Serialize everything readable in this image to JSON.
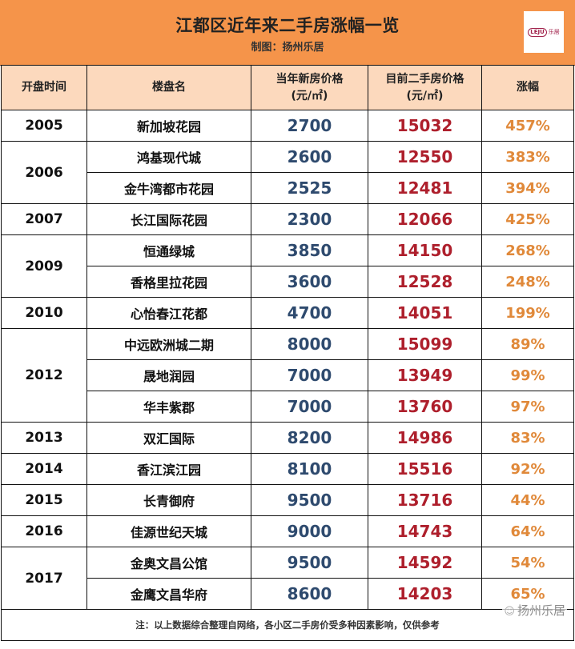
{
  "header": {
    "title": "江都区近年来二手房涨幅一览",
    "subtitle": "制图：扬州乐居",
    "logo": {
      "mark": "LEJU",
      "text": "乐居"
    }
  },
  "colors": {
    "title_band": "#F5944A",
    "header_row": "#FCD9BD",
    "new_price": "#2E4A6E",
    "used_price": "#AE1F2C",
    "rise": "#E0893A"
  },
  "table": {
    "columns": [
      "开盘时间",
      "楼盘名",
      "当年新房价格",
      "目前二手房价格",
      "涨幅"
    ],
    "column_units": [
      "",
      "",
      "(元/㎡)",
      "(元/㎡)",
      ""
    ],
    "groups": [
      {
        "year": "2005",
        "rows": [
          {
            "name": "新加坡花园",
            "new_price": "2700",
            "used_price": "15032",
            "rise": "457%"
          }
        ]
      },
      {
        "year": "2006",
        "rows": [
          {
            "name": "鸿基现代城",
            "new_price": "2600",
            "used_price": "12550",
            "rise": "383%"
          },
          {
            "name": "金牛湾都市花园",
            "new_price": "2525",
            "used_price": "12481",
            "rise": "394%"
          }
        ]
      },
      {
        "year": "2007",
        "rows": [
          {
            "name": "长江国际花园",
            "new_price": "2300",
            "used_price": "12066",
            "rise": "425%"
          }
        ]
      },
      {
        "year": "2009",
        "rows": [
          {
            "name": "恒通绿城",
            "new_price": "3850",
            "used_price": "14150",
            "rise": "268%"
          },
          {
            "name": "香格里拉花园",
            "new_price": "3600",
            "used_price": "12528",
            "rise": "248%"
          }
        ]
      },
      {
        "year": "2010",
        "rows": [
          {
            "name": "心怡春江花都",
            "new_price": "4700",
            "used_price": "14051",
            "rise": "199%"
          }
        ]
      },
      {
        "year": "2012",
        "rows": [
          {
            "name": "中远欧洲城二期",
            "new_price": "8000",
            "used_price": "15099",
            "rise": "89%"
          },
          {
            "name": "晟地润园",
            "new_price": "7000",
            "used_price": "13949",
            "rise": "99%"
          },
          {
            "name": "华丰紫郡",
            "new_price": "7000",
            "used_price": "13760",
            "rise": "97%"
          }
        ]
      },
      {
        "year": "2013",
        "rows": [
          {
            "name": "双汇国际",
            "new_price": "8200",
            "used_price": "14986",
            "rise": "83%"
          }
        ]
      },
      {
        "year": "2014",
        "rows": [
          {
            "name": "香江滨江园",
            "new_price": "8100",
            "used_price": "15516",
            "rise": "92%"
          }
        ]
      },
      {
        "year": "2015",
        "rows": [
          {
            "name": "长青御府",
            "new_price": "9500",
            "used_price": "13716",
            "rise": "44%"
          }
        ]
      },
      {
        "year": "2016",
        "rows": [
          {
            "name": "佳源世纪天城",
            "new_price": "9000",
            "used_price": "14743",
            "rise": "64%"
          }
        ]
      },
      {
        "year": "2017",
        "rows": [
          {
            "name": "金奥文昌公馆",
            "new_price": "9500",
            "used_price": "14592",
            "rise": "54%"
          },
          {
            "name": "金鹰文昌华府",
            "new_price": "8600",
            "used_price": "14203",
            "rise": "65%"
          }
        ]
      }
    ]
  },
  "footer": {
    "note": "注：以上数据综合整理自网络，各小区二手房价受多种因素影响，仅供参考",
    "watermark": "扬州乐居",
    "watermark_icon": "wechat-icon"
  }
}
